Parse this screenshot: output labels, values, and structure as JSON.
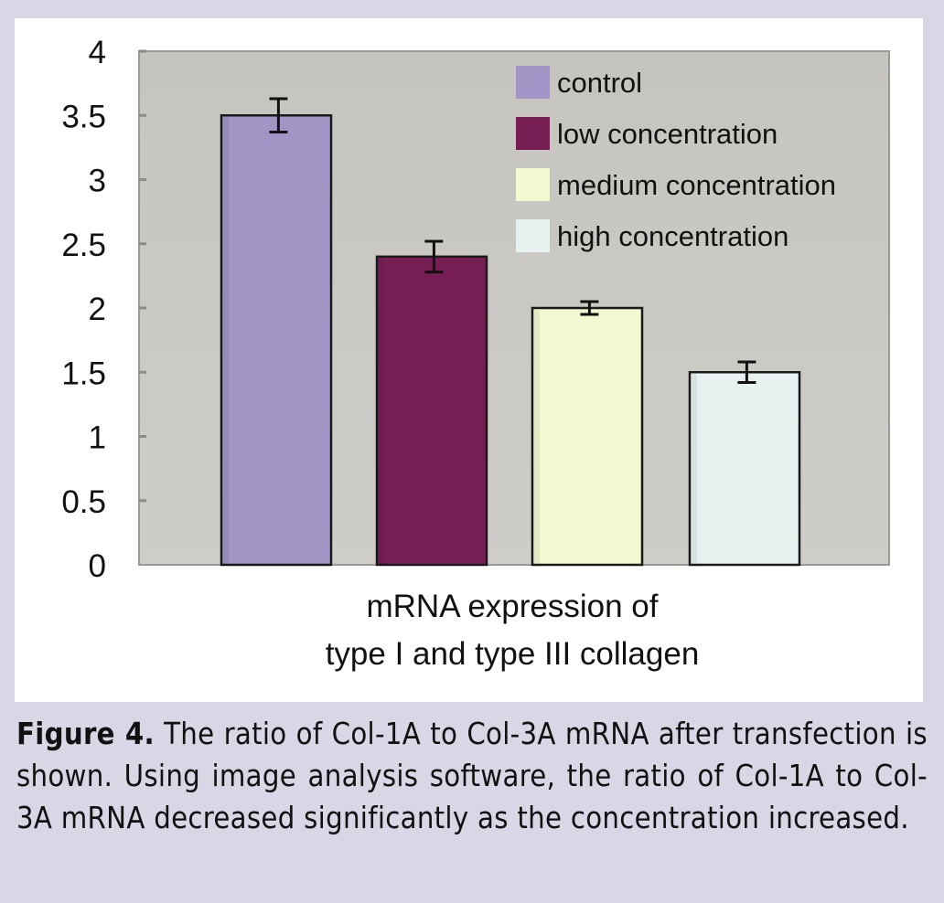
{
  "chart_data": {
    "type": "bar",
    "categories": [
      "control",
      "low concentration",
      "medium concentration",
      "high concentration"
    ],
    "values": [
      3.5,
      2.4,
      2.0,
      1.5
    ],
    "errors": [
      0.13,
      0.12,
      0.05,
      0.08
    ],
    "colors": [
      "#a095c4",
      "#771e55",
      "#f2f8cf",
      "#e6f1f0"
    ],
    "ylim": [
      0,
      4
    ],
    "yticks": [
      0,
      0.5,
      1,
      1.5,
      2,
      2.5,
      3,
      3.5,
      4
    ],
    "ytick_labels": [
      "0",
      "0.5",
      "1",
      "1.5",
      "2",
      "2.5",
      "3",
      "3.5",
      "4"
    ],
    "xlabel_lines": [
      "mRNA expression of",
      "type I and type III collagen"
    ],
    "ylabel": "",
    "legend": [
      "control",
      "low concentration",
      "medium concentration",
      "high concentration"
    ],
    "legend_position": "top-right",
    "plot_background": "#cac8c2"
  },
  "caption": {
    "label": "Figure 4.",
    "text": "The ratio of Col-1A to Col-3A mRNA after transfection is shown. Using image analysis software, the ratio of Col-1A to Col-3A mRNA decreased significantly as the concentration increased."
  }
}
